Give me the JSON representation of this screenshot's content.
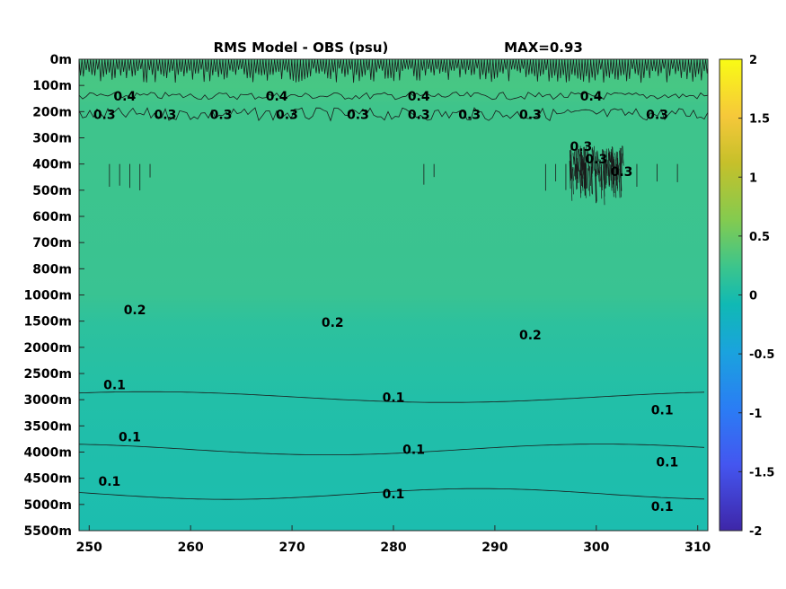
{
  "chart_data": {
    "type": "heatmap",
    "title": "RMS Model - OBS (psu)",
    "max_label": "MAX=0.93",
    "x_ticks": [
      "250",
      "260",
      "270",
      "280",
      "290",
      "300",
      "310"
    ],
    "x_range": [
      249,
      311
    ],
    "y_ticks": [
      "0m",
      "100m",
      "200m",
      "300m",
      "400m",
      "500m",
      "600m",
      "700m",
      "800m",
      "1000m",
      "1500m",
      "2000m",
      "2500m",
      "3000m",
      "3500m",
      "4000m",
      "4500m",
      "5000m",
      "5500m"
    ],
    "colorbar": {
      "ticks": [
        "2",
        "1.5",
        "1",
        "0.5",
        "0",
        "-0.5",
        "-1",
        "-1.5",
        "-2"
      ],
      "range": [
        -2,
        2
      ],
      "colormap": [
        "#3e26a8",
        "#4743f5",
        "#2f7af7",
        "#1fa6df",
        "#0cbaba",
        "#41c98c",
        "#9fc93a",
        "#e8ba33",
        "#f9fb15"
      ]
    },
    "depth_profile": [
      {
        "depth": "0m",
        "value": 0.41
      },
      {
        "depth": "100m",
        "value": 0.45
      },
      {
        "depth": "200m",
        "value": 0.33
      },
      {
        "depth": "300m",
        "value": 0.3
      },
      {
        "depth": "400m",
        "value": 0.3
      },
      {
        "depth": "500m",
        "value": 0.29
      },
      {
        "depth": "600m",
        "value": 0.28
      },
      {
        "depth": "700m",
        "value": 0.27
      },
      {
        "depth": "800m",
        "value": 0.26
      },
      {
        "depth": "1000m",
        "value": 0.24
      },
      {
        "depth": "1500m",
        "value": 0.2
      },
      {
        "depth": "2000m",
        "value": 0.16
      },
      {
        "depth": "2500m",
        "value": 0.13
      },
      {
        "depth": "3000m",
        "value": 0.1
      },
      {
        "depth": "3500m",
        "value": 0.09
      },
      {
        "depth": "4000m",
        "value": 0.08
      },
      {
        "depth": "4500m",
        "value": 0.07
      },
      {
        "depth": "5000m",
        "value": 0.06
      },
      {
        "depth": "5500m",
        "value": 0.05
      }
    ],
    "contours": [
      {
        "level": "0.4",
        "depth_index": 1.4,
        "labels": [
          {
            "x": 253.5,
            "text": "0.4"
          },
          {
            "x": 268.5,
            "text": "0.4"
          },
          {
            "x": 282.5,
            "text": "0.4"
          },
          {
            "x": 299.5,
            "text": "0.4"
          }
        ]
      },
      {
        "level": "0.3",
        "depth_index": 2.1,
        "labels": [
          {
            "x": 251.5,
            "text": "0.3"
          },
          {
            "x": 257.5,
            "text": "0.3"
          },
          {
            "x": 263.0,
            "text": "0.3"
          },
          {
            "x": 269.5,
            "text": "0.3"
          },
          {
            "x": 276.5,
            "text": "0.3"
          },
          {
            "x": 282.5,
            "text": "0.3"
          },
          {
            "x": 287.5,
            "text": "0.3"
          },
          {
            "x": 293.5,
            "text": "0.3"
          },
          {
            "x": 306.0,
            "text": "0.3"
          }
        ]
      },
      {
        "level": "0.3",
        "depth_index": 3.8,
        "labels": [
          {
            "x": 298.5,
            "text": "0.3"
          },
          {
            "x": 300.0,
            "text": "0.3"
          },
          {
            "x": 302.5,
            "text": "0.3"
          }
        ]
      },
      {
        "level": "0.2",
        "depth_index": 10.05,
        "labels": [
          {
            "x": 254.5,
            "text": "0.2"
          },
          {
            "x": 274.0,
            "text": "0.2"
          },
          {
            "x": 293.5,
            "text": "0.2"
          }
        ]
      },
      {
        "level": "0.1",
        "depth_index": 12.9,
        "labels": [
          {
            "x": 252.5,
            "text": "0.1"
          },
          {
            "x": 280.0,
            "text": "0.1"
          },
          {
            "x": 306.5,
            "text": "0.1"
          }
        ]
      },
      {
        "level": "0.1",
        "depth_index": 14.9,
        "labels": [
          {
            "x": 254.0,
            "text": "0.1"
          },
          {
            "x": 282.0,
            "text": "0.1"
          },
          {
            "x": 307.0,
            "text": "0.1"
          }
        ]
      },
      {
        "level": "0.1",
        "depth_index": 16.6,
        "labels": [
          {
            "x": 252.0,
            "text": "0.1"
          },
          {
            "x": 280.0,
            "text": "0.1"
          },
          {
            "x": 306.5,
            "text": "0.1"
          }
        ]
      }
    ]
  }
}
